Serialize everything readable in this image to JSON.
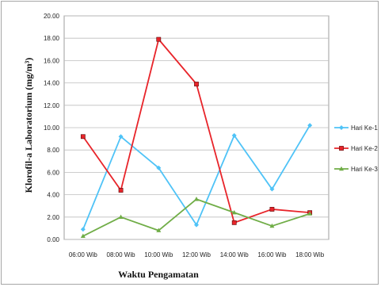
{
  "chart_data": {
    "type": "line",
    "xlabel": "Waktu Pengamatan",
    "ylabel": "Klorofil-a Laboratorium (mg/m³)",
    "categories": [
      "06:00 Wib",
      "08:00 Wib",
      "10:00 Wib",
      "12:00 Wib",
      "14:00 Wib",
      "16:00 Wib",
      "18:00 Wib"
    ],
    "y_ticks": [
      "0.00",
      "2.00",
      "4.00",
      "6.00",
      "8.00",
      "10.00",
      "12.00",
      "14.00",
      "16.00",
      "18.00",
      "20.00"
    ],
    "ylim": [
      0,
      20
    ],
    "grid": "horizontal",
    "legend_position": "right",
    "series": [
      {
        "name": "Hari Ke-1",
        "color": "#4fc3f7",
        "marker": "diamond",
        "values": [
          0.9,
          9.2,
          6.4,
          1.3,
          9.3,
          4.5,
          10.2
        ]
      },
      {
        "name": "Hari Ke-2",
        "color": "#e8242a",
        "marker": "square",
        "values": [
          9.2,
          4.4,
          17.9,
          13.9,
          1.5,
          2.7,
          2.4
        ]
      },
      {
        "name": "Hari Ke-3",
        "color": "#70ad47",
        "marker": "triangle",
        "values": [
          0.3,
          2.0,
          0.8,
          3.6,
          2.4,
          1.2,
          2.3
        ]
      }
    ]
  }
}
